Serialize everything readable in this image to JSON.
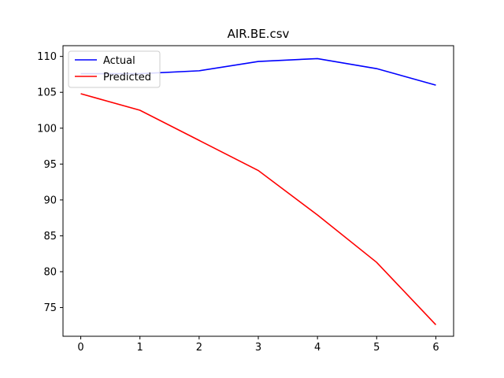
{
  "chart_data": {
    "type": "line",
    "title": "AIR.BE.csv",
    "xlabel": "",
    "ylabel": "",
    "x": [
      0,
      1,
      2,
      3,
      4,
      5,
      6
    ],
    "xlim": [
      -0.3,
      6.3
    ],
    "ylim": [
      71,
      111.5
    ],
    "xticks": [
      0,
      1,
      2,
      3,
      4,
      5,
      6
    ],
    "yticks": [
      75,
      80,
      85,
      90,
      95,
      100,
      105,
      110
    ],
    "grid": false,
    "legend_position": "top-left",
    "series": [
      {
        "name": "Actual",
        "color": "#0000ff",
        "values": [
          107.6,
          107.6,
          108.0,
          109.3,
          109.7,
          108.3,
          106.0
        ]
      },
      {
        "name": "Predicted",
        "color": "#ff0000",
        "values": [
          104.8,
          102.5,
          98.3,
          94.1,
          87.9,
          81.3,
          72.6
        ]
      }
    ]
  }
}
